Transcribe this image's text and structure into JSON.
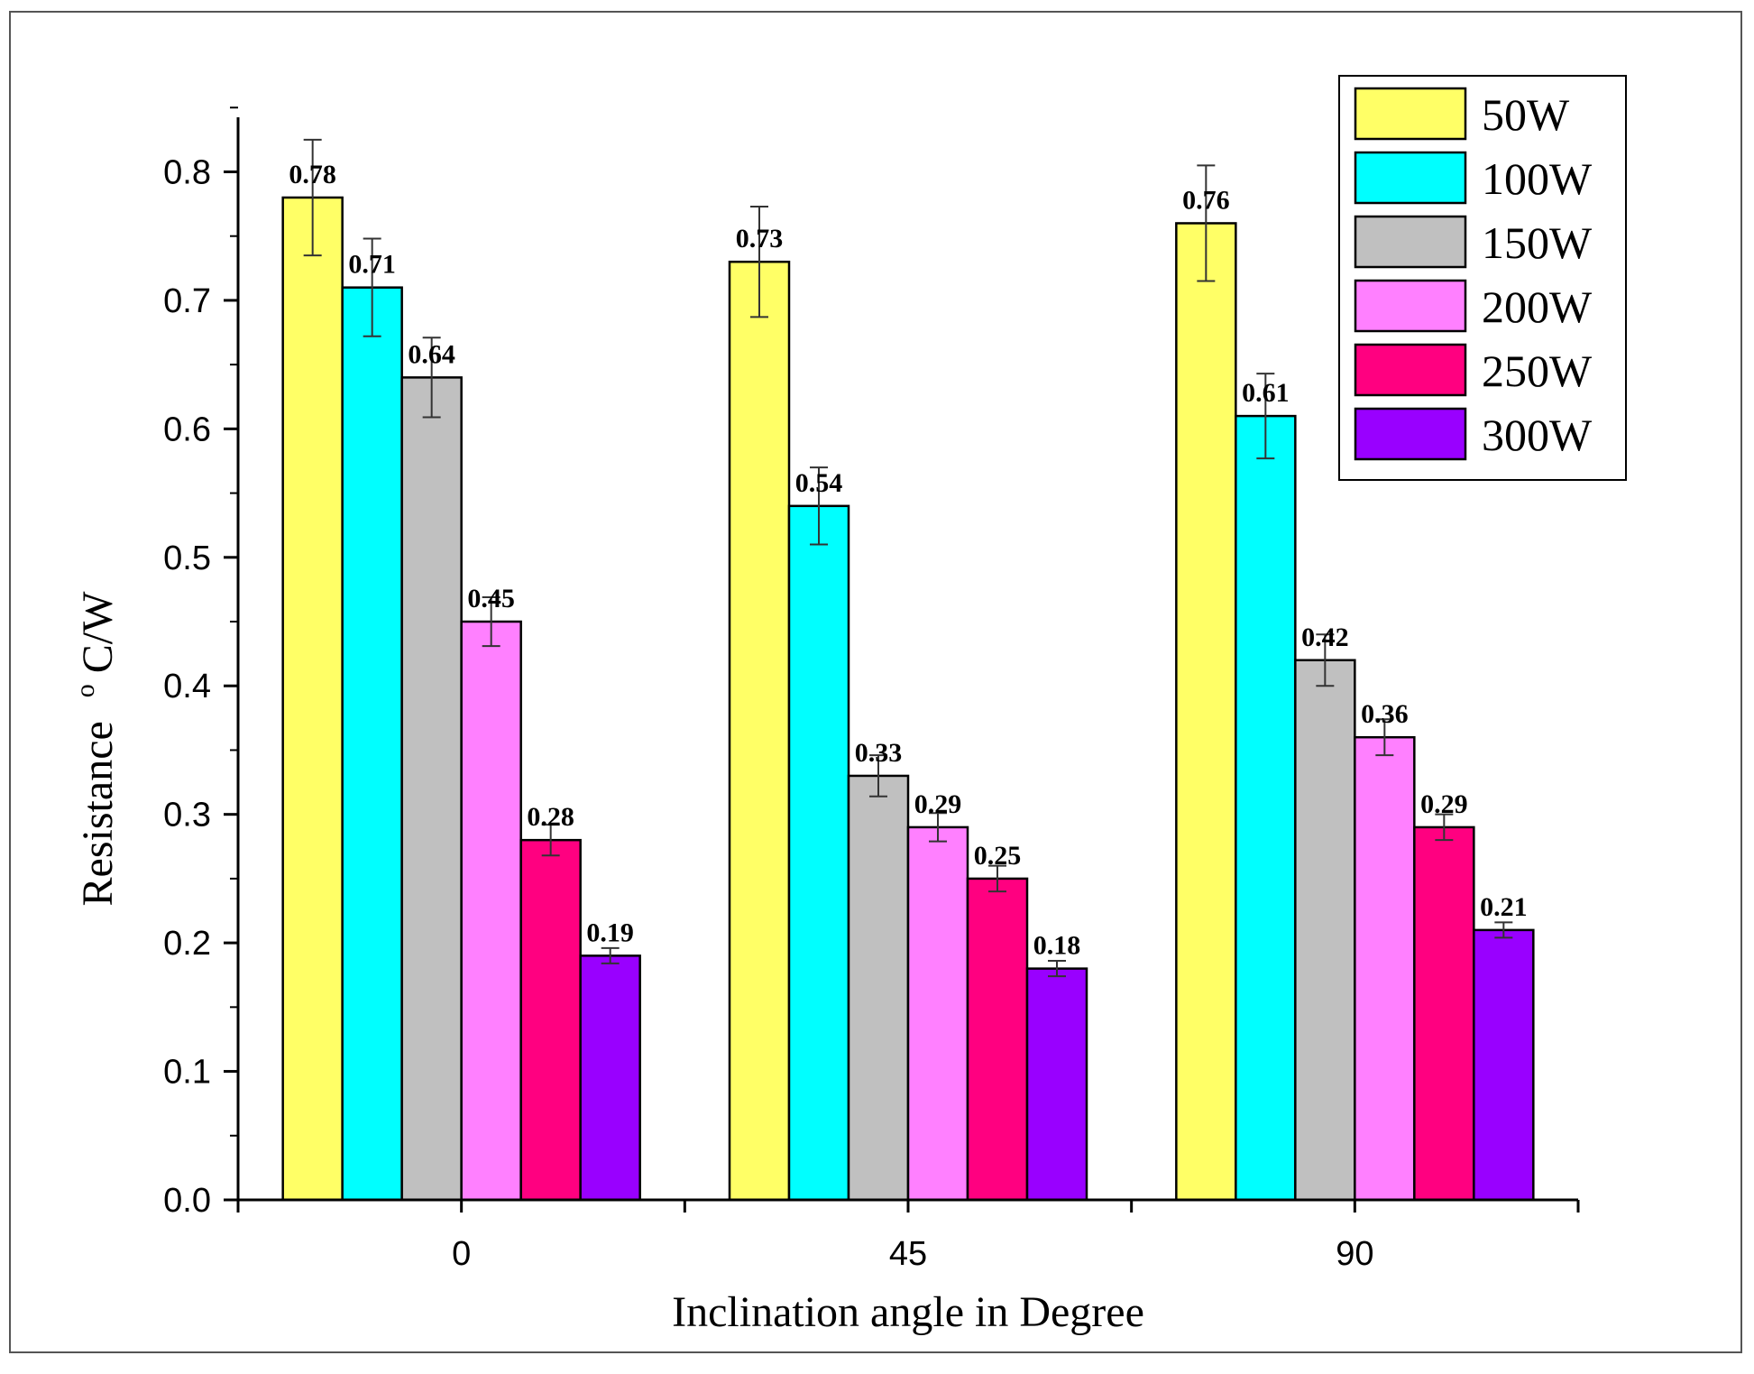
{
  "chart_data": {
    "type": "bar",
    "xlabel": "Inclination angle in Degree",
    "ylabel_main": "Resistance",
    "ylabel_sup": "o",
    "ylabel_unit": "C/W",
    "categories": [
      "0",
      "45",
      "90"
    ],
    "ylim": [
      0.0,
      0.85
    ],
    "yticks": [
      "0.0",
      "0.1",
      "0.2",
      "0.3",
      "0.4",
      "0.5",
      "0.6",
      "0.7",
      "0.8"
    ],
    "legend_position": "top-right",
    "series": [
      {
        "name": "50W",
        "color": "#FFFF66",
        "values": [
          0.78,
          0.73,
          0.76
        ],
        "labels": [
          "0.78",
          "0.73",
          "0.76"
        ],
        "errors": [
          0.045,
          0.043,
          0.045
        ]
      },
      {
        "name": "100W",
        "color": "#00FFFF",
        "values": [
          0.71,
          0.54,
          0.61
        ],
        "labels": [
          "0.71",
          "0.54",
          "0.61"
        ],
        "errors": [
          0.038,
          0.03,
          0.033
        ]
      },
      {
        "name": "150W",
        "color": "#C0C0C0",
        "values": [
          0.64,
          0.33,
          0.42
        ],
        "labels": [
          "0.64",
          "0.33",
          "0.42"
        ],
        "errors": [
          0.031,
          0.016,
          0.02
        ]
      },
      {
        "name": "200W",
        "color": "#FF80FF",
        "values": [
          0.45,
          0.29,
          0.36
        ],
        "labels": [
          "0.45",
          "0.29",
          "0.36"
        ],
        "errors": [
          0.019,
          0.011,
          0.014
        ]
      },
      {
        "name": "250W",
        "color": "#FF0080",
        "values": [
          0.28,
          0.25,
          0.29
        ],
        "labels": [
          "0.28",
          "0.25",
          "0.29"
        ],
        "errors": [
          0.012,
          0.01,
          0.01
        ]
      },
      {
        "name": "300W",
        "color": "#9900FF",
        "values": [
          0.19,
          0.18,
          0.21
        ],
        "labels": [
          "0.19",
          "0.18",
          "0.21"
        ],
        "errors": [
          0.006,
          0.006,
          0.006
        ]
      }
    ]
  }
}
